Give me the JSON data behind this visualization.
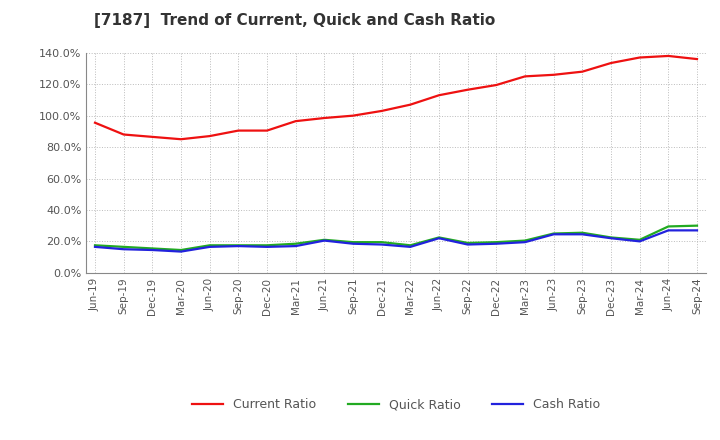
{
  "title": "[7187]  Trend of Current, Quick and Cash Ratio",
  "x_labels": [
    "Jun-19",
    "Sep-19",
    "Dec-19",
    "Mar-20",
    "Jun-20",
    "Sep-20",
    "Dec-20",
    "Mar-21",
    "Jun-21",
    "Sep-21",
    "Dec-21",
    "Mar-22",
    "Jun-22",
    "Sep-22",
    "Dec-22",
    "Mar-23",
    "Jun-23",
    "Sep-23",
    "Dec-23",
    "Mar-24",
    "Jun-24",
    "Sep-24"
  ],
  "current_ratio": [
    95.5,
    88.0,
    86.5,
    85.0,
    87.0,
    90.5,
    90.5,
    96.5,
    98.5,
    100.0,
    103.0,
    107.0,
    113.0,
    116.5,
    119.5,
    125.0,
    126.0,
    128.0,
    133.5,
    137.0,
    138.0,
    136.0
  ],
  "quick_ratio": [
    17.5,
    16.5,
    15.5,
    14.5,
    17.5,
    17.5,
    17.5,
    18.5,
    21.0,
    19.5,
    19.5,
    17.5,
    22.5,
    19.0,
    19.5,
    20.5,
    25.0,
    25.5,
    22.5,
    21.0,
    29.5,
    30.0
  ],
  "cash_ratio": [
    16.5,
    15.0,
    14.5,
    13.5,
    16.5,
    17.0,
    16.5,
    17.0,
    20.5,
    18.5,
    18.0,
    16.5,
    22.0,
    18.0,
    18.5,
    19.5,
    24.5,
    24.5,
    22.0,
    20.0,
    27.0,
    27.0
  ],
  "current_color": "#EE1111",
  "quick_color": "#22AA22",
  "cash_color": "#2222DD",
  "ylim": [
    0,
    140
  ],
  "yticks": [
    0,
    20,
    40,
    60,
    80,
    100,
    120,
    140
  ],
  "background_color": "#FFFFFF",
  "grid_color": "#BBBBBB",
  "title_color": "#333333",
  "label_color": "#555555"
}
